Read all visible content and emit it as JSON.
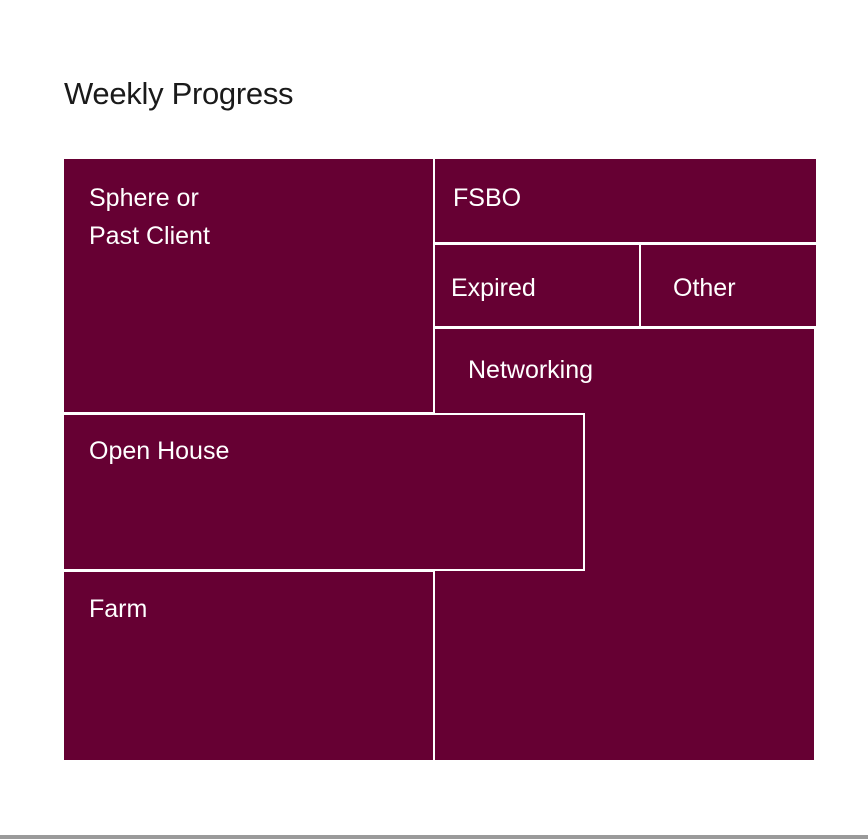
{
  "title": "Weekly Progress",
  "colors": {
    "tile_fill": "#660033",
    "tile_text": "#ffffff",
    "tile_border": "#ffffff"
  },
  "tiles": [
    {
      "id": "sphere",
      "label": "Sphere or\nPast Client"
    },
    {
      "id": "fsbo",
      "label": "FSBO"
    },
    {
      "id": "expired",
      "label": "Expired"
    },
    {
      "id": "other",
      "label": "Other"
    },
    {
      "id": "networking",
      "label": "Networking"
    },
    {
      "id": "open-house",
      "label": "Open House"
    },
    {
      "id": "farm",
      "label": "Farm"
    }
  ]
}
